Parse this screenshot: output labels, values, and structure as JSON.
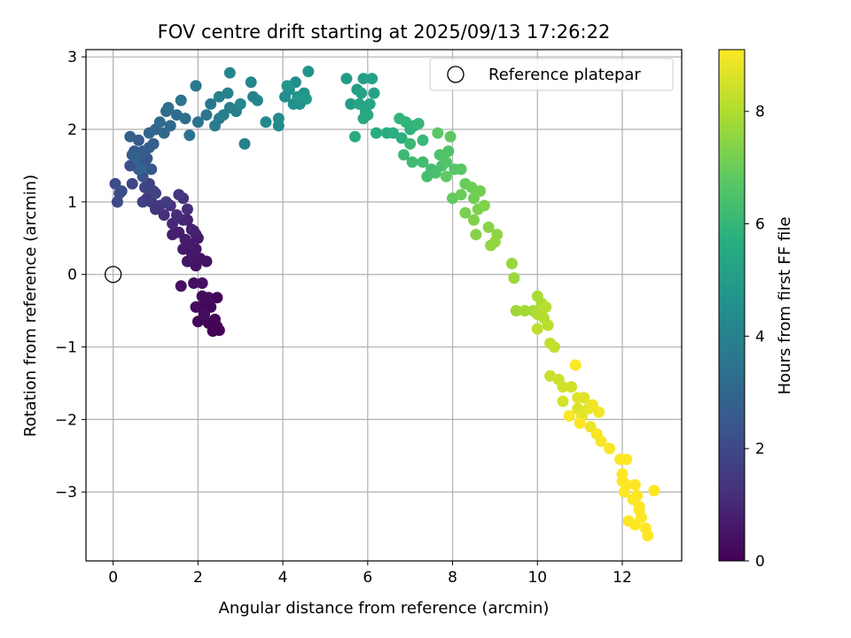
{
  "chart_data": {
    "type": "scatter",
    "title": "FOV centre drift starting at 2025/09/13 17:26:22",
    "xlabel": "Angular distance from reference (arcmin)",
    "ylabel": "Rotation from reference (arcmin)",
    "xlim": [
      -0.64,
      13.4
    ],
    "ylim": [
      -3.95,
      3.1
    ],
    "x_ticks": [
      0,
      2,
      4,
      6,
      8,
      10,
      12
    ],
    "y_ticks": [
      -3,
      -2,
      -1,
      0,
      1,
      2,
      3
    ],
    "grid": true,
    "legend": {
      "position": "top-right",
      "entries": [
        "Reference platepar"
      ]
    },
    "colorbar": {
      "label": "Hours from first FF file",
      "range": [
        0,
        9.1
      ],
      "ticks": [
        0,
        2,
        4,
        6,
        8
      ],
      "colormap": "viridis"
    },
    "reference_point": {
      "x": 0,
      "y": 0
    },
    "series": [
      {
        "color_by": "Hours from first FF file",
        "points": [
          [
            2.5,
            -0.77,
            0.02
          ],
          [
            2.45,
            -0.72,
            0.04
          ],
          [
            2.35,
            -0.78,
            0.06
          ],
          [
            2.4,
            -0.62,
            0.08
          ],
          [
            2.25,
            -0.67,
            0.1
          ],
          [
            2.15,
            -0.55,
            0.12
          ],
          [
            2.45,
            -0.32,
            0.14
          ],
          [
            2.0,
            -0.65,
            0.16
          ],
          [
            2.3,
            -0.45,
            0.18
          ],
          [
            2.2,
            -0.38,
            0.2
          ],
          [
            2.05,
            -0.45,
            0.22
          ],
          [
            2.1,
            -0.3,
            0.24
          ],
          [
            2.25,
            -0.32,
            0.26
          ],
          [
            1.95,
            -0.45,
            0.28
          ],
          [
            2.15,
            -0.55,
            0.3
          ],
          [
            1.9,
            -0.12,
            0.35
          ],
          [
            1.6,
            -0.16,
            0.38
          ],
          [
            2.1,
            -0.12,
            0.4
          ],
          [
            2.2,
            0.18,
            0.45
          ],
          [
            1.95,
            0.12,
            0.48
          ],
          [
            2.05,
            0.22,
            0.5
          ],
          [
            1.85,
            0.18,
            0.52
          ],
          [
            1.75,
            0.18,
            0.55
          ],
          [
            1.95,
            0.35,
            0.58
          ],
          [
            1.85,
            0.3,
            0.6
          ],
          [
            1.65,
            0.35,
            0.62
          ],
          [
            2.0,
            0.5,
            0.65
          ],
          [
            1.8,
            0.42,
            0.68
          ],
          [
            1.7,
            0.48,
            0.7
          ],
          [
            1.95,
            0.55,
            0.72
          ],
          [
            1.55,
            0.58,
            0.75
          ],
          [
            1.85,
            0.62,
            0.78
          ],
          [
            1.4,
            0.55,
            0.8
          ],
          [
            1.75,
            0.75,
            0.82
          ],
          [
            1.9,
            0.6,
            0.85
          ],
          [
            1.65,
            0.75,
            1.0
          ],
          [
            1.4,
            0.7,
            1.05
          ],
          [
            1.75,
            0.9,
            1.1
          ],
          [
            1.5,
            0.82,
            1.15
          ],
          [
            1.2,
            0.82,
            1.2
          ],
          [
            1.35,
            0.95,
            1.25
          ],
          [
            1.65,
            1.05,
            1.3
          ],
          [
            1.0,
            0.9,
            1.35
          ],
          [
            1.55,
            1.1,
            1.4
          ],
          [
            1.1,
            0.95,
            1.45
          ],
          [
            0.9,
            1.0,
            1.5
          ],
          [
            0.8,
            1.05,
            1.55
          ],
          [
            1.25,
            1.0,
            1.6
          ],
          [
            0.95,
            1.15,
            1.65
          ],
          [
            0.7,
            1.0,
            1.7
          ],
          [
            0.85,
            1.25,
            1.75
          ],
          [
            1.0,
            1.12,
            1.8
          ],
          [
            0.75,
            1.2,
            1.85
          ],
          [
            0.45,
            1.25,
            1.9
          ],
          [
            0.1,
            1.0,
            2.0
          ],
          [
            0.15,
            1.12,
            2.05
          ],
          [
            0.05,
            1.25,
            2.1
          ],
          [
            0.2,
            1.15,
            2.15
          ],
          [
            0.4,
            1.5,
            2.2
          ],
          [
            0.6,
            1.45,
            2.25
          ],
          [
            0.8,
            1.6,
            2.3
          ],
          [
            0.7,
            1.35,
            2.35
          ],
          [
            0.5,
            1.7,
            2.4
          ],
          [
            0.75,
            1.55,
            2.45
          ],
          [
            0.9,
            1.45,
            2.5
          ],
          [
            0.6,
            1.85,
            2.55
          ],
          [
            0.85,
            1.75,
            2.6
          ],
          [
            0.45,
            1.65,
            2.65
          ],
          [
            0.7,
            1.7,
            2.7
          ],
          [
            0.95,
            1.8,
            2.75
          ],
          [
            0.4,
            1.9,
            2.8
          ],
          [
            0.55,
            1.6,
            2.85
          ],
          [
            0.65,
            1.45,
            2.9
          ],
          [
            0.85,
            1.95,
            2.95
          ],
          [
            1.0,
            2.0,
            3.0
          ],
          [
            1.2,
            1.95,
            3.05
          ],
          [
            1.35,
            2.05,
            3.1
          ],
          [
            1.1,
            2.1,
            3.15
          ],
          [
            1.25,
            2.25,
            3.2
          ],
          [
            1.5,
            2.2,
            3.25
          ],
          [
            1.3,
            2.3,
            3.3
          ],
          [
            1.7,
            2.15,
            3.35
          ],
          [
            1.8,
            1.92,
            3.4
          ],
          [
            1.6,
            2.4,
            3.45
          ],
          [
            2.0,
            2.1,
            3.5
          ],
          [
            2.2,
            2.2,
            3.55
          ],
          [
            1.95,
            2.6,
            3.6
          ],
          [
            2.3,
            2.35,
            3.65
          ],
          [
            2.5,
            2.15,
            3.7
          ],
          [
            2.4,
            2.05,
            3.75
          ],
          [
            2.75,
            2.3,
            3.8
          ],
          [
            2.6,
            2.2,
            3.85
          ],
          [
            2.9,
            2.25,
            3.9
          ],
          [
            2.7,
            2.5,
            3.95
          ],
          [
            2.5,
            2.45,
            3.95
          ],
          [
            3.1,
            1.8,
            3.97
          ],
          [
            3.3,
            2.45,
            4.0
          ],
          [
            3.4,
            2.4,
            4.05
          ],
          [
            2.75,
            2.78,
            4.1
          ],
          [
            3.25,
            2.65,
            4.15
          ],
          [
            3.0,
            2.35,
            4.2
          ],
          [
            3.6,
            2.1,
            4.25
          ],
          [
            3.9,
            2.05,
            4.3
          ],
          [
            3.9,
            2.15,
            4.35
          ],
          [
            4.05,
            2.45,
            4.4
          ],
          [
            4.3,
            2.65,
            4.45
          ],
          [
            4.15,
            2.55,
            4.5
          ],
          [
            4.4,
            2.35,
            4.55
          ],
          [
            4.25,
            2.35,
            4.6
          ],
          [
            4.5,
            2.5,
            4.65
          ],
          [
            4.6,
            2.8,
            4.7
          ],
          [
            4.1,
            2.6,
            4.75
          ],
          [
            4.35,
            2.45,
            4.8
          ],
          [
            4.55,
            2.42,
            4.85
          ],
          [
            5.5,
            2.7,
            4.95
          ],
          [
            5.6,
            2.35,
            5.0
          ],
          [
            5.75,
            2.55,
            5.05
          ],
          [
            5.9,
            2.7,
            5.1
          ],
          [
            6.1,
            2.7,
            5.15
          ],
          [
            5.85,
            2.5,
            5.2
          ],
          [
            6.15,
            2.5,
            5.25
          ],
          [
            5.8,
            2.35,
            5.3
          ],
          [
            5.95,
            2.25,
            5.35
          ],
          [
            6.05,
            2.35,
            5.4
          ],
          [
            5.9,
            2.15,
            5.45
          ],
          [
            6.0,
            2.2,
            5.5
          ],
          [
            5.7,
            1.9,
            5.55
          ],
          [
            6.2,
            1.95,
            5.6
          ],
          [
            6.45,
            1.95,
            5.65
          ],
          [
            6.6,
            1.95,
            5.7
          ],
          [
            6.8,
            1.88,
            5.75
          ],
          [
            7.0,
            2.0,
            5.8
          ],
          [
            6.9,
            2.1,
            5.85
          ],
          [
            7.1,
            2.05,
            5.9
          ],
          [
            6.75,
            2.15,
            5.95
          ],
          [
            7.2,
            2.08,
            6.0
          ],
          [
            7.3,
            1.85,
            6.05
          ],
          [
            7.0,
            1.8,
            6.1
          ],
          [
            6.85,
            1.65,
            6.15
          ],
          [
            7.05,
            1.55,
            6.2
          ],
          [
            7.3,
            1.55,
            6.25
          ],
          [
            7.5,
            1.45,
            6.3
          ],
          [
            7.4,
            1.35,
            6.35
          ],
          [
            7.6,
            1.4,
            6.4
          ],
          [
            7.75,
            1.5,
            6.45
          ],
          [
            7.7,
            1.65,
            6.5
          ],
          [
            7.9,
            1.7,
            6.55
          ],
          [
            7.85,
            1.55,
            6.6
          ],
          [
            8.05,
            1.45,
            6.65
          ],
          [
            8.2,
            1.45,
            6.7
          ],
          [
            7.65,
            1.95,
            6.75
          ],
          [
            7.95,
            1.9,
            6.8
          ],
          [
            7.85,
            1.35,
            6.85
          ],
          [
            8.0,
            1.05,
            6.9
          ],
          [
            8.3,
            1.25,
            6.95
          ],
          [
            8.2,
            1.1,
            7.0
          ],
          [
            8.45,
            1.2,
            7.05
          ],
          [
            8.5,
            1.05,
            7.1
          ],
          [
            8.65,
            1.15,
            7.15
          ],
          [
            8.3,
            0.85,
            7.2
          ],
          [
            8.6,
            0.9,
            7.25
          ],
          [
            8.5,
            0.75,
            7.3
          ],
          [
            8.75,
            0.95,
            7.35
          ],
          [
            8.55,
            0.55,
            7.4
          ],
          [
            8.85,
            0.65,
            7.45
          ],
          [
            9.05,
            0.55,
            7.5
          ],
          [
            8.9,
            0.4,
            7.55
          ],
          [
            9.0,
            0.45,
            7.6
          ],
          [
            9.4,
            0.15,
            7.65
          ],
          [
            9.45,
            -0.05,
            7.7
          ],
          [
            9.5,
            -0.5,
            7.75
          ],
          [
            9.7,
            -0.5,
            7.8
          ],
          [
            9.9,
            -0.5,
            7.85
          ],
          [
            10.0,
            -0.3,
            7.9
          ],
          [
            10.1,
            -0.4,
            7.95
          ],
          [
            10.0,
            -0.55,
            8.0
          ],
          [
            10.15,
            -0.6,
            8.05
          ],
          [
            10.2,
            -0.45,
            8.1
          ],
          [
            10.25,
            -0.7,
            8.15
          ],
          [
            10.0,
            -0.75,
            8.2
          ],
          [
            10.3,
            -0.95,
            8.25
          ],
          [
            10.4,
            -1.0,
            8.3
          ],
          [
            10.3,
            -1.4,
            8.35
          ],
          [
            10.5,
            -1.45,
            8.4
          ],
          [
            10.6,
            -1.55,
            8.45
          ],
          [
            10.8,
            -1.55,
            8.5
          ],
          [
            10.6,
            -1.75,
            8.55
          ],
          [
            10.95,
            -1.85,
            8.6
          ],
          [
            11.1,
            -1.7,
            8.65
          ],
          [
            10.95,
            -1.7,
            8.7
          ],
          [
            11.05,
            -1.95,
            8.75
          ],
          [
            11.2,
            -1.85,
            8.8
          ],
          [
            11.25,
            -2.1,
            8.85
          ],
          [
            11.3,
            -1.8,
            8.9
          ],
          [
            11.45,
            -1.9,
            8.95
          ],
          [
            11.4,
            -2.2,
            9.0
          ],
          [
            11.5,
            -2.3,
            9.02
          ],
          [
            11.7,
            -2.4,
            9.05
          ],
          [
            10.75,
            -1.95,
            9.06
          ],
          [
            10.9,
            -1.25,
            9.07
          ],
          [
            11.0,
            -2.05,
            9.08
          ],
          [
            11.95,
            -2.55,
            9.09
          ],
          [
            12.1,
            -2.55,
            9.1
          ],
          [
            12.0,
            -2.75,
            9.1
          ],
          [
            12.1,
            -2.9,
            9.1
          ],
          [
            12.3,
            -2.9,
            9.1
          ],
          [
            12.05,
            -3.0,
            9.1
          ],
          [
            12.25,
            -3.1,
            9.1
          ],
          [
            12.4,
            -3.2,
            9.1
          ],
          [
            12.45,
            -3.35,
            9.1
          ],
          [
            12.3,
            -3.45,
            9.1
          ],
          [
            12.15,
            -3.4,
            9.1
          ],
          [
            12.55,
            -3.5,
            9.1
          ],
          [
            12.6,
            -3.6,
            9.1
          ],
          [
            12.75,
            -2.98,
            9.1
          ],
          [
            12.4,
            -3.25,
            9.1
          ],
          [
            12.35,
            -3.05,
            9.1
          ],
          [
            12.0,
            -2.85,
            9.1
          ]
        ]
      }
    ]
  }
}
